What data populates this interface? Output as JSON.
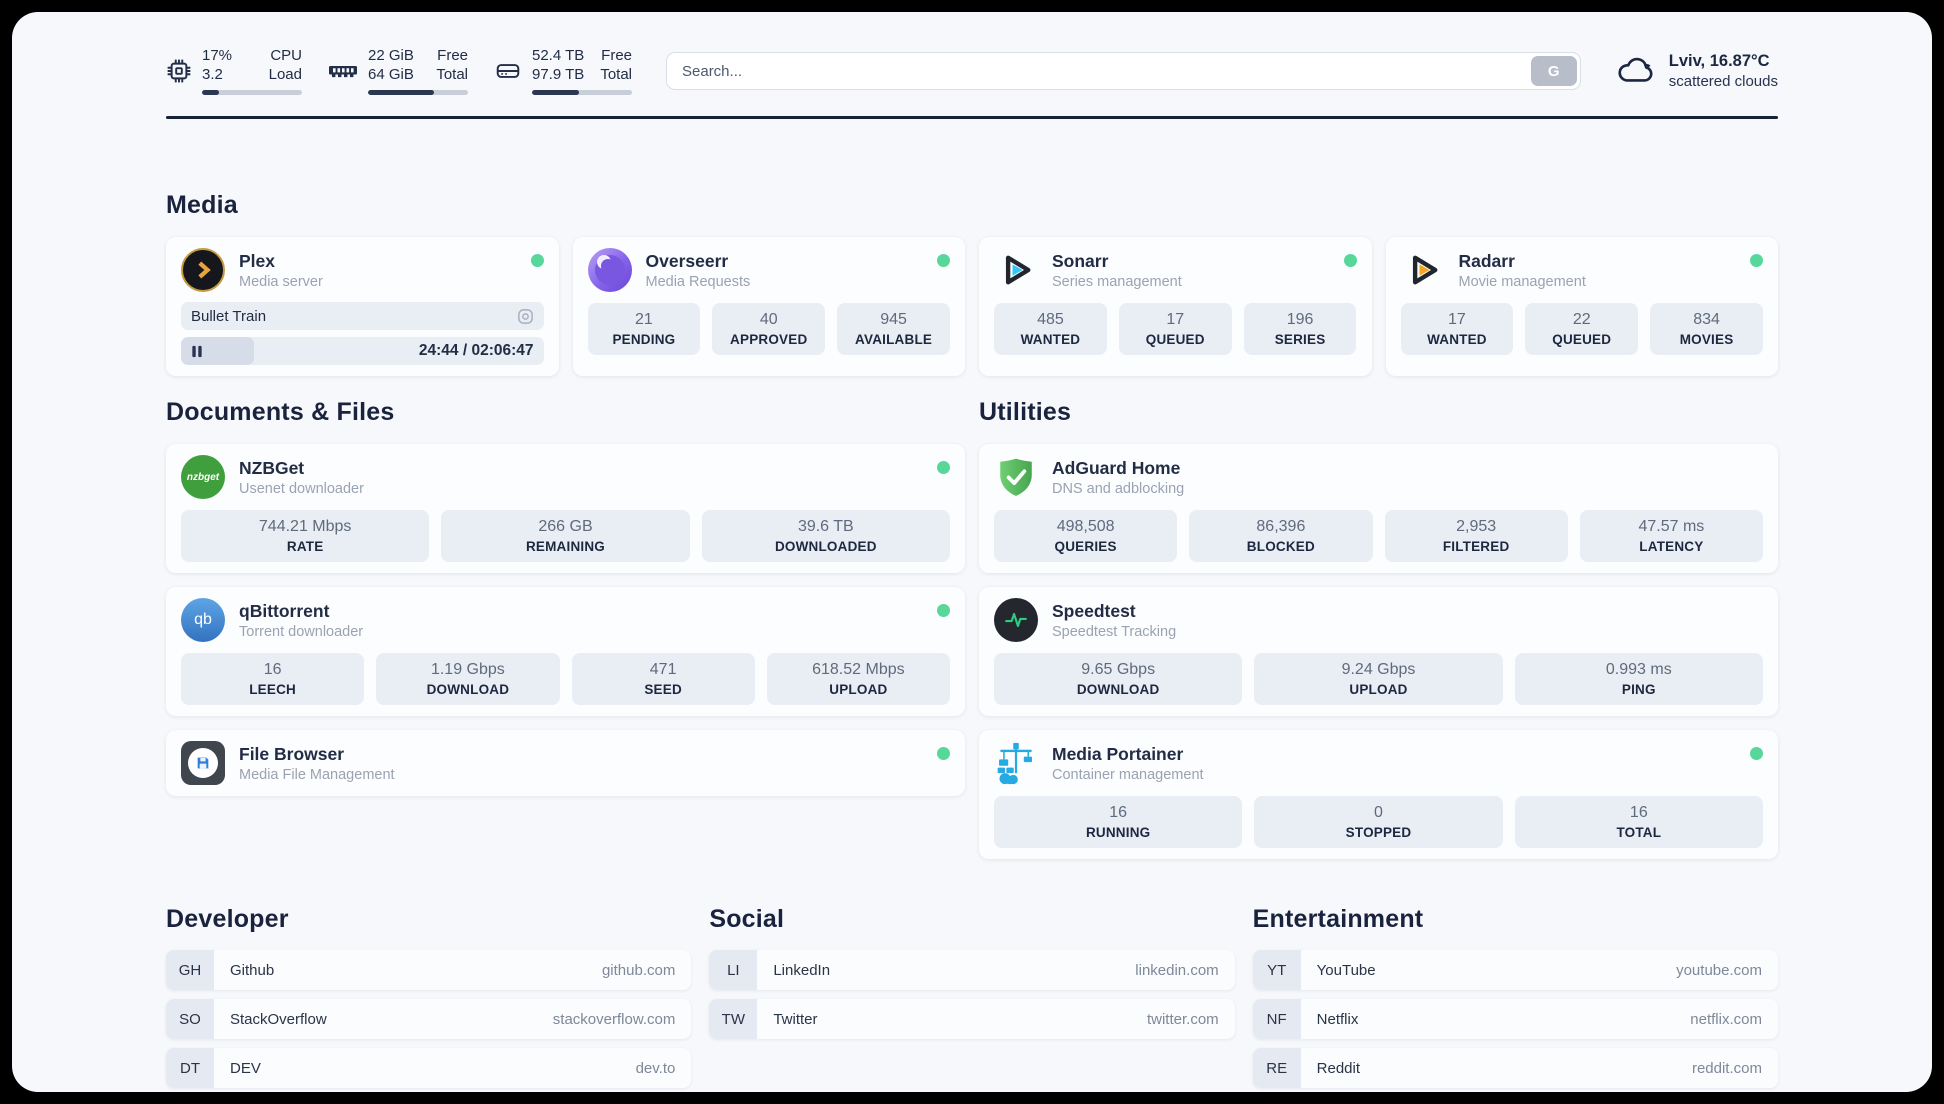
{
  "colors": {
    "status_online": "#57d79a",
    "navy": "#222d45",
    "page_bg": "#f6f8fb",
    "accent_amber": "#e8a33d"
  },
  "header": {
    "metrics": [
      {
        "name": "cpu",
        "values": [
          "17%",
          "3.2"
        ],
        "labels": [
          "CPU",
          "Load"
        ],
        "progress_pct": 17
      },
      {
        "name": "memory",
        "values": [
          "22 GiB",
          "64 GiB"
        ],
        "labels": [
          "Free",
          "Total"
        ],
        "progress_pct": 66
      },
      {
        "name": "storage",
        "values": [
          "52.4 TB",
          "97.9 TB"
        ],
        "labels": [
          "Free",
          "Total"
        ],
        "progress_pct": 47
      }
    ],
    "search": {
      "placeholder": "Search...",
      "button": "G"
    },
    "weather": {
      "icon": "cloud-icon",
      "title": "Lviv, 16.87°C",
      "subtitle": "scattered clouds"
    }
  },
  "media": {
    "title": "Media",
    "plex": {
      "name": "Plex",
      "subtitle": "Media server",
      "online": true,
      "now_playing": "Bullet Train",
      "time": "24:44 / 02:06:47",
      "progress_pct": 20
    },
    "overseerr": {
      "name": "Overseerr",
      "subtitle": "Media Requests",
      "online": true,
      "stats": [
        {
          "value": "21",
          "label": "PENDING"
        },
        {
          "value": "40",
          "label": "APPROVED"
        },
        {
          "value": "945",
          "label": "AVAILABLE"
        }
      ]
    },
    "sonarr": {
      "name": "Sonarr",
      "subtitle": "Series management",
      "online": true,
      "stats": [
        {
          "value": "485",
          "label": "WANTED"
        },
        {
          "value": "17",
          "label": "QUEUED"
        },
        {
          "value": "196",
          "label": "SERIES"
        }
      ]
    },
    "radarr": {
      "name": "Radarr",
      "subtitle": "Movie management",
      "online": true,
      "stats": [
        {
          "value": "17",
          "label": "WANTED"
        },
        {
          "value": "22",
          "label": "QUEUED"
        },
        {
          "value": "834",
          "label": "MOVIES"
        }
      ]
    }
  },
  "documents": {
    "title": "Documents & Files",
    "nzbget": {
      "name": "NZBGet",
      "subtitle": "Usenet downloader",
      "icon_text": "nzbget",
      "online": true,
      "stats": [
        {
          "value": "744.21 Mbps",
          "label": "RATE"
        },
        {
          "value": "266 GB",
          "label": "REMAINING"
        },
        {
          "value": "39.6 TB",
          "label": "DOWNLOADED"
        }
      ]
    },
    "qbittorrent": {
      "name": "qBittorrent",
      "subtitle": "Torrent downloader",
      "icon_text": "qb",
      "online": true,
      "stats": [
        {
          "value": "16",
          "label": "LEECH"
        },
        {
          "value": "1.19 Gbps",
          "label": "DOWNLOAD"
        },
        {
          "value": "471",
          "label": "SEED"
        },
        {
          "value": "618.52 Mbps",
          "label": "UPLOAD"
        }
      ]
    },
    "filebrowser": {
      "name": "File Browser",
      "subtitle": "Media File Management",
      "online": true
    }
  },
  "utilities": {
    "title": "Utilities",
    "adguard": {
      "name": "AdGuard Home",
      "subtitle": "DNS and adblocking",
      "online": false,
      "stats": [
        {
          "value": "498,508",
          "label": "QUERIES"
        },
        {
          "value": "86,396",
          "label": "BLOCKED"
        },
        {
          "value": "2,953",
          "label": "FILTERED"
        },
        {
          "value": "47.57 ms",
          "label": "LATENCY"
        }
      ]
    },
    "speedtest": {
      "name": "Speedtest",
      "subtitle": "Speedtest Tracking",
      "online": false,
      "stats": [
        {
          "value": "9.65 Gbps",
          "label": "DOWNLOAD"
        },
        {
          "value": "9.24 Gbps",
          "label": "UPLOAD"
        },
        {
          "value": "0.993 ms",
          "label": "PING"
        }
      ]
    },
    "portainer": {
      "name": "Media Portainer",
      "subtitle": "Container management",
      "online": true,
      "stats": [
        {
          "value": "16",
          "label": "RUNNING"
        },
        {
          "value": "0",
          "label": "STOPPED"
        },
        {
          "value": "16",
          "label": "TOTAL"
        }
      ]
    }
  },
  "bookmarks": [
    {
      "title": "Developer",
      "links": [
        {
          "abbr": "GH",
          "name": "Github",
          "url": "github.com"
        },
        {
          "abbr": "SO",
          "name": "StackOverflow",
          "url": "stackoverflow.com"
        },
        {
          "abbr": "DT",
          "name": "DEV",
          "url": "dev.to"
        }
      ]
    },
    {
      "title": "Social",
      "links": [
        {
          "abbr": "LI",
          "name": "LinkedIn",
          "url": "linkedin.com"
        },
        {
          "abbr": "TW",
          "name": "Twitter",
          "url": "twitter.com"
        }
      ]
    },
    {
      "title": "Entertainment",
      "links": [
        {
          "abbr": "YT",
          "name": "YouTube",
          "url": "youtube.com"
        },
        {
          "abbr": "NF",
          "name": "Netflix",
          "url": "netflix.com"
        },
        {
          "abbr": "RE",
          "name": "Reddit",
          "url": "reddit.com"
        }
      ]
    }
  ]
}
